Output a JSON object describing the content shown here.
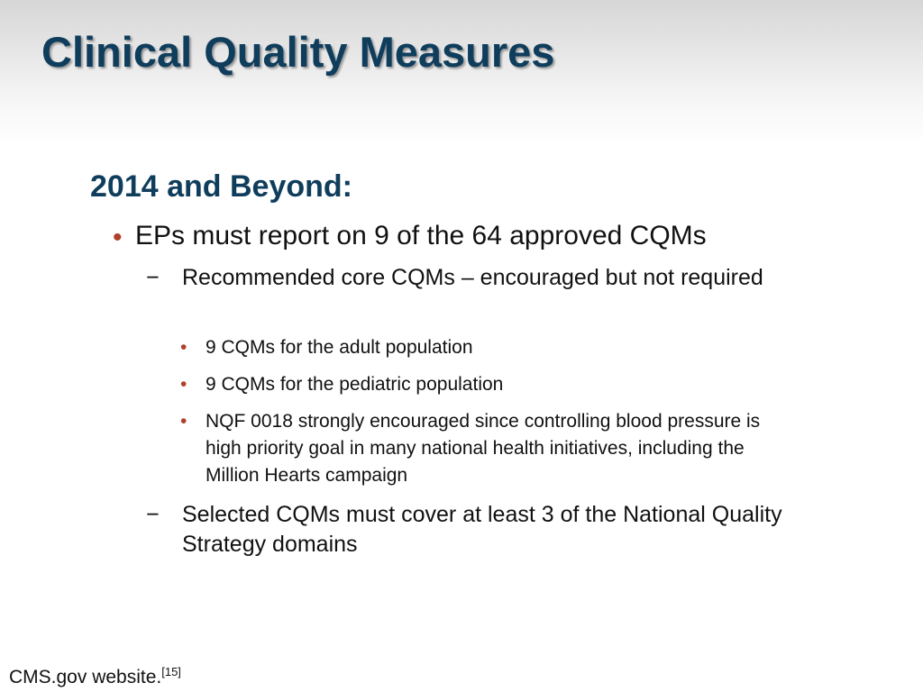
{
  "slide": {
    "title": "Clinical Quality Measures",
    "heading": "2014 and Beyond:",
    "level1": [
      {
        "bullet": "•",
        "text": "EPs must report on 9 of the 64 approved CQMs"
      }
    ],
    "level2": [
      {
        "marker": "−",
        "text": "Recommended core CQMs – encouraged but not required"
      },
      {
        "marker": "−",
        "text": "Selected CQMs must cover at least 3 of the National Quality Strategy domains"
      }
    ],
    "level3": [
      {
        "bullet": "•",
        "text": "9 CQMs for the adult population"
      },
      {
        "bullet": "•",
        "text": "9 CQMs for the pediatric population"
      },
      {
        "bullet": "•",
        "text": "NQF 0018 strongly encouraged since controlling blood pressure is high priority goal in many national health initiatives, including the Million Hearts campaign"
      }
    ],
    "source": {
      "text": "CMS.gov website.",
      "ref": "[15]"
    }
  },
  "colors": {
    "title": "#0f3d5c",
    "heading": "#0f3d5c",
    "bullet": "#b0412a",
    "text": "#111111"
  }
}
